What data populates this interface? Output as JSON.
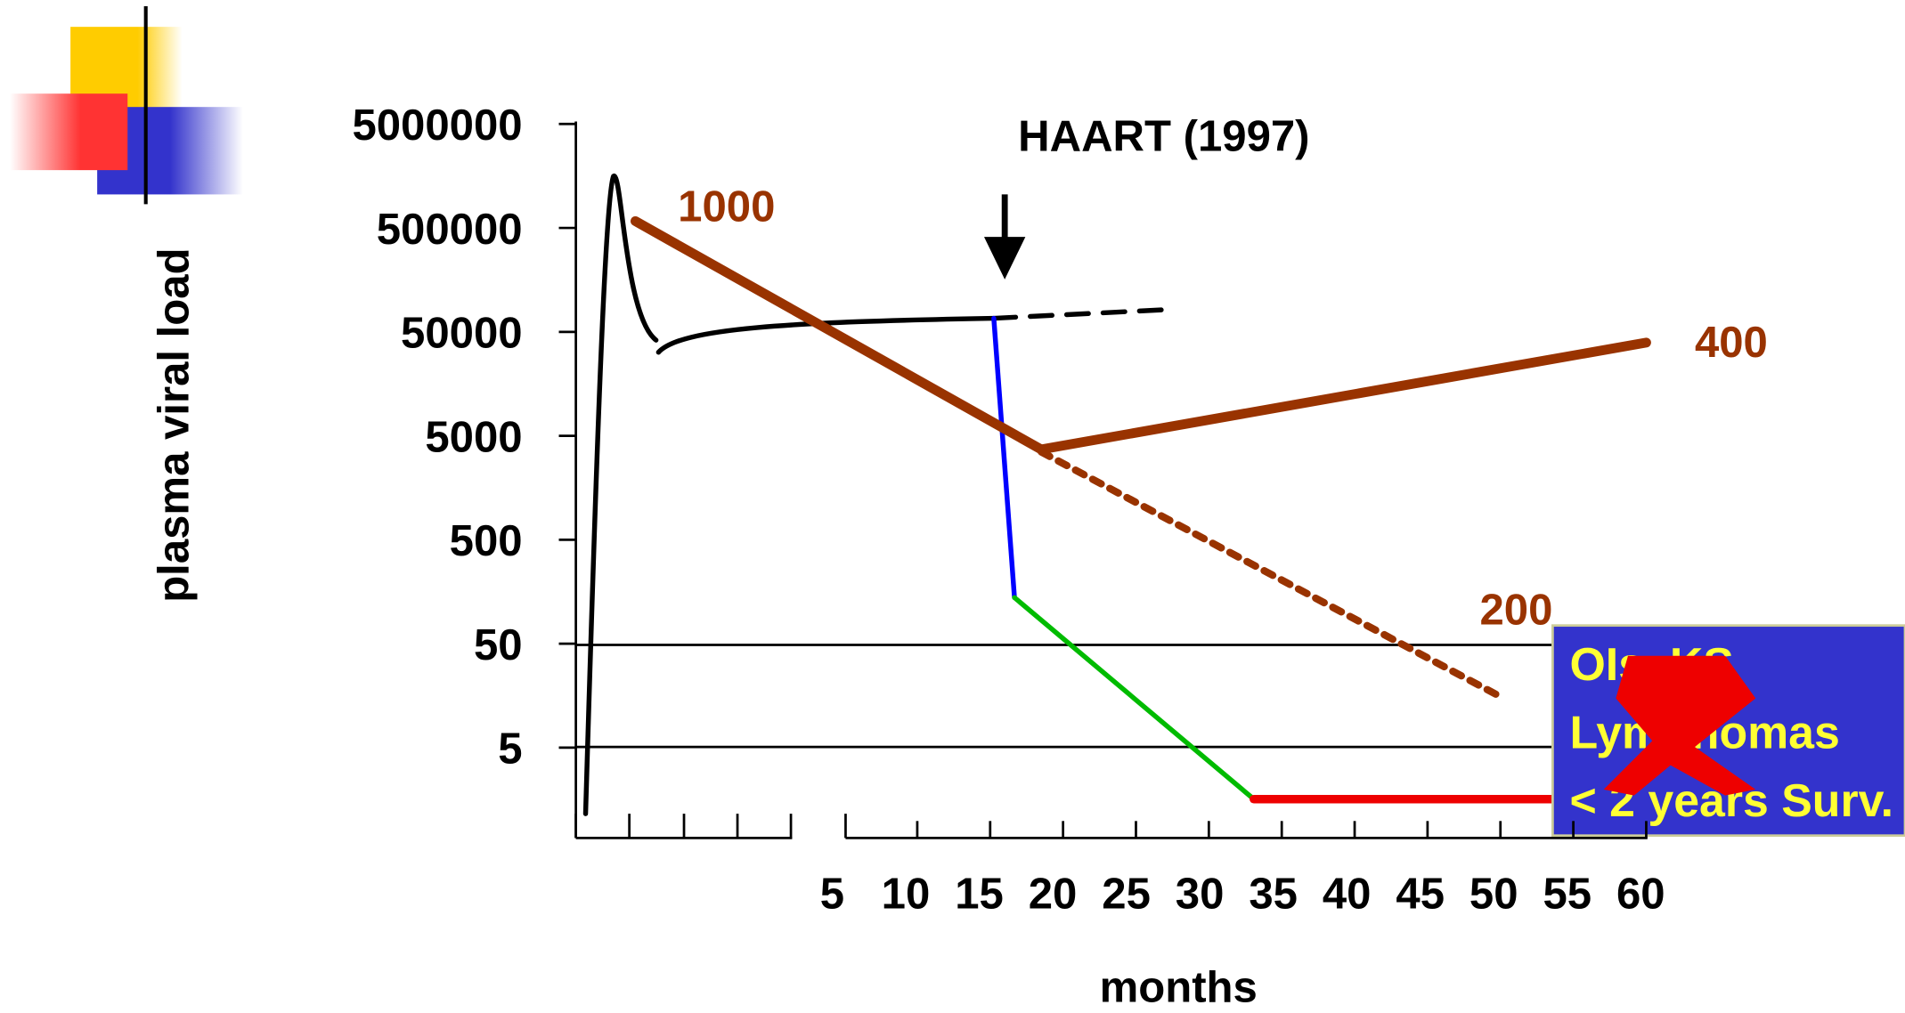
{
  "header": {
    "marker": "HAART (1997)"
  },
  "axes": {
    "y_label": "plasma viral load",
    "x_label": "months",
    "y_ticks": [
      "5000000",
      "500000",
      "50000",
      "5000",
      "500",
      "50",
      "5"
    ],
    "x_ticks": [
      "5",
      "10",
      "15",
      "20",
      "25",
      "30",
      "35",
      "40",
      "45",
      "50",
      "55",
      "60"
    ]
  },
  "annotations": {
    "cd4_start": "1000",
    "cd4_end": "400",
    "cd4_treated": "200"
  },
  "outcome_box": {
    "lines": [
      "OIs, KS",
      "Lymphomas",
      "< 2 years Surv."
    ]
  }
}
